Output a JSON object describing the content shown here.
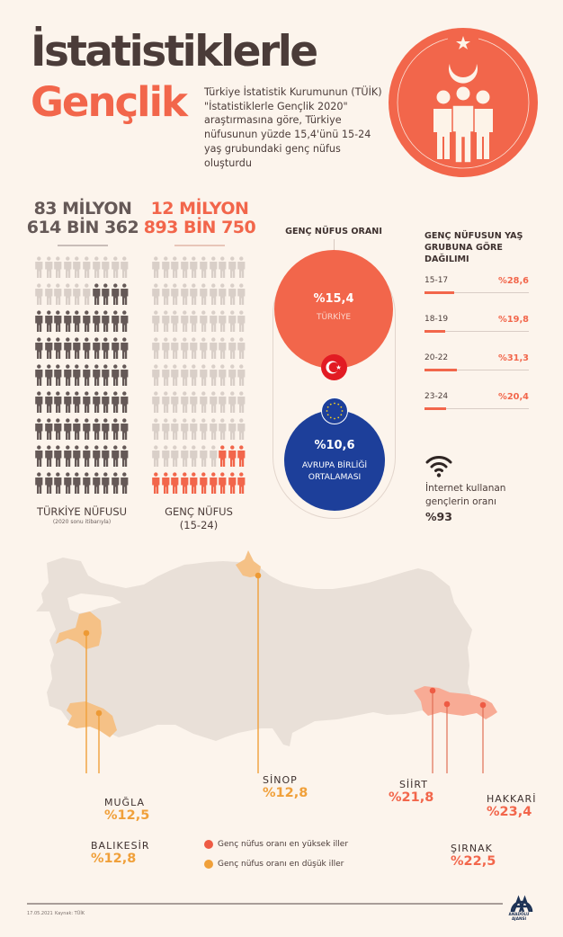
{
  "header": {
    "title_line1": "İstatistiklerle",
    "title_line2": "Gençlik",
    "intro": "Türkiye İstatistik Kurumunun (TÜİK) \"İstatistiklerle Gençlik 2020\" araştırmasına göre, Türkiye nüfusunun yüzde 15,4'ünü 15-24 yaş grubundaki genç nüfus oluşturdu",
    "hero_icon": "turkish-crescent-people-icon"
  },
  "population": {
    "total": {
      "line1": "83 MİLYON",
      "line2": "614 BİN 362",
      "label": "TÜRKİYE NÜFUSU",
      "sublabel": "(2020 sonu itibarıyla)",
      "grid": {
        "rows": 9,
        "cols": 10,
        "inactive": 16,
        "active_color": "#655957",
        "inactive_color": "#d9cfc8"
      }
    },
    "youth": {
      "line1": "12 MİLYON",
      "line2": "893 BİN 750",
      "label": "GENÇ NÜFUS",
      "sublabel": "(15-24)",
      "grid": {
        "rows": 9,
        "cols": 10,
        "inactive": 77,
        "active_color": "#f2664b",
        "inactive_color": "#d9cfc8"
      }
    }
  },
  "youth_ratio": {
    "title": "GENÇ NÜFUS ORANI",
    "turkey": {
      "value": "%15,4",
      "label": "TÜRKİYE",
      "color": "#f2664b",
      "flag_icon": "turkey-flag-icon"
    },
    "eu": {
      "value": "%10,6",
      "label_line1": "AVRUPA BİRLİĞİ",
      "label_line2": "ORTALAMASI",
      "color": "#1d3f9a",
      "flag_icon": "eu-flag-icon"
    }
  },
  "age_distribution": {
    "title": "GENÇ NÜFUSUN YAŞ GRUBUNA GÖRE DAĞILIMI",
    "rows": [
      {
        "label": "15-17",
        "value": "%28,6",
        "pct": 28.6
      },
      {
        "label": "18-19",
        "value": "%19,8",
        "pct": 19.8
      },
      {
        "label": "20-22",
        "value": "%31,3",
        "pct": 31.3
      },
      {
        "label": "23-24",
        "value": "%20,4",
        "pct": 20.4
      }
    ]
  },
  "internet": {
    "icon": "wifi-icon",
    "label": "İnternet kullanan gençlerin oranı",
    "value": "%93"
  },
  "map": {
    "low_color": "#f0a03a",
    "high_color": "#f2664b",
    "cities": [
      {
        "name": "MUĞLA",
        "value": "%12,5",
        "group": "low"
      },
      {
        "name": "BALIKESİR",
        "value": "%12,8",
        "group": "low"
      },
      {
        "name": "SİNOP",
        "value": "%12,8",
        "group": "low"
      },
      {
        "name": "SİİRT",
        "value": "%21,8",
        "group": "high"
      },
      {
        "name": "ŞIRNAK",
        "value": "%22,5",
        "group": "high"
      },
      {
        "name": "HAKKARİ",
        "value": "%23,4",
        "group": "high"
      }
    ],
    "legend": {
      "high": "Genç nüfus oranı en yüksek iller",
      "low": "Genç nüfus oranı en düşük iller"
    }
  },
  "footer": {
    "date": "17.05.2021",
    "source": "Kaynak: TÜİK",
    "logo_text": "ANADOLU AJANSI"
  }
}
